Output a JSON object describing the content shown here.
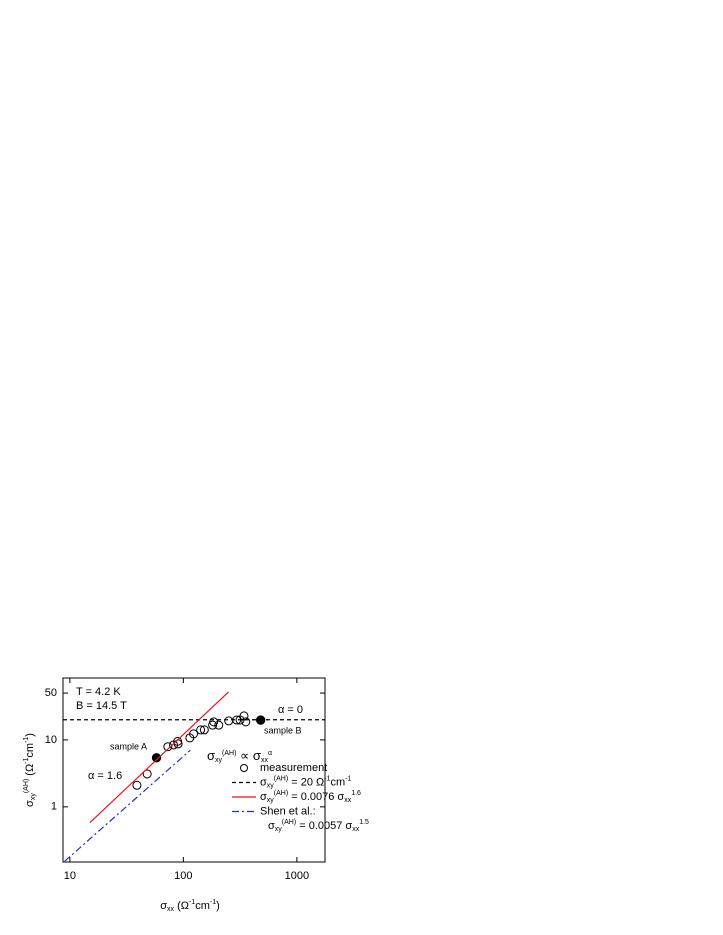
{
  "chart_data": {
    "type": "scatter",
    "log_x": true,
    "log_y": true,
    "xlim": [
      8.7,
      1770
    ],
    "ylim": [
      0.15,
      84
    ],
    "xticks": [
      10,
      100,
      1000
    ],
    "yticks": [
      1,
      10,
      50
    ],
    "xlabel": [
      {
        "text": "σ",
        "sub": "xx"
      },
      {
        "text": " (Ω",
        "sup": "-1"
      },
      {
        "text": "cm",
        "sup": "-1"
      },
      {
        "text": ")"
      }
    ],
    "ylabel": [
      {
        "text": "σ",
        "sub": "xy",
        "sup": "(AH)"
      },
      {
        "text": " (Ω",
        "sup": "-1"
      },
      {
        "text": "cm",
        "sup": "-1"
      },
      {
        "text": ")"
      }
    ],
    "series": [
      {
        "type": "scatter",
        "name": [
          [
            {
              "text": "measurement"
            }
          ]
        ],
        "marker": "open-circle",
        "color": "#000000",
        "x": [
          39,
          48,
          73,
          82,
          89,
          90,
          114,
          123,
          142,
          153,
          181,
          185,
          205,
          251,
          295,
          316,
          342,
          355
        ],
        "values": [
          2.1,
          3.1,
          7.9,
          8.4,
          9.5,
          8.7,
          10.7,
          12.3,
          14.1,
          14.1,
          16.6,
          18.6,
          16.6,
          19.2,
          19.8,
          19.8,
          22.8,
          18.6
        ]
      },
      {
        "type": "scatter",
        "marker": "filled-circle",
        "color": "#000000",
        "x": [
          58,
          480
        ],
        "values": [
          5.4,
          19.8
        ]
      },
      {
        "type": "line",
        "style": "dashed",
        "color": "#000000",
        "name": [
          [
            {
              "text": "σ",
              "sub": "xy",
              "sup": "(AH)"
            },
            {
              "text": " = 20 Ω",
              "sup": "-1"
            },
            {
              "text": "cm",
              "sup": "-1"
            }
          ]
        ],
        "x": [
          8.7,
          1770
        ],
        "values": [
          20,
          20
        ]
      },
      {
        "type": "line",
        "style": "solid",
        "color": "#e8141b",
        "name": [
          [
            {
              "text": "σ",
              "sub": "xy",
              "sup": "(AH)"
            },
            {
              "text": " = 0.0076 σ",
              "sub": "xx",
              "sup": "1.6"
            }
          ]
        ],
        "x": [
          15,
          250
        ],
        "values": [
          0.58,
          52
        ]
      },
      {
        "type": "line",
        "style": "dashdot",
        "color": "#1f2fd6",
        "name": [
          [
            {
              "text": "Shen et al.:"
            }
          ],
          [
            {
              "text": "σ",
              "sub": "xy",
              "sup": "(AH)"
            },
            {
              "text": " = 0.0057 σ",
              "sub": "xx",
              "sup": "1.5"
            }
          ]
        ],
        "x": [
          9,
          115
        ],
        "values": [
          0.154,
          7.0
        ]
      }
    ],
    "annotations": [
      "T = 4.2 K",
      "B = 14.5 T",
      "α  = 0",
      "α  = 1.6",
      "sample A",
      "sample B",
      [
        {
          "text": "σ",
          "sub": "xy",
          "sup": "(AH)"
        },
        {
          "text": "  ∝  σ",
          "sub": "xx",
          "sup": "α"
        }
      ]
    ]
  }
}
